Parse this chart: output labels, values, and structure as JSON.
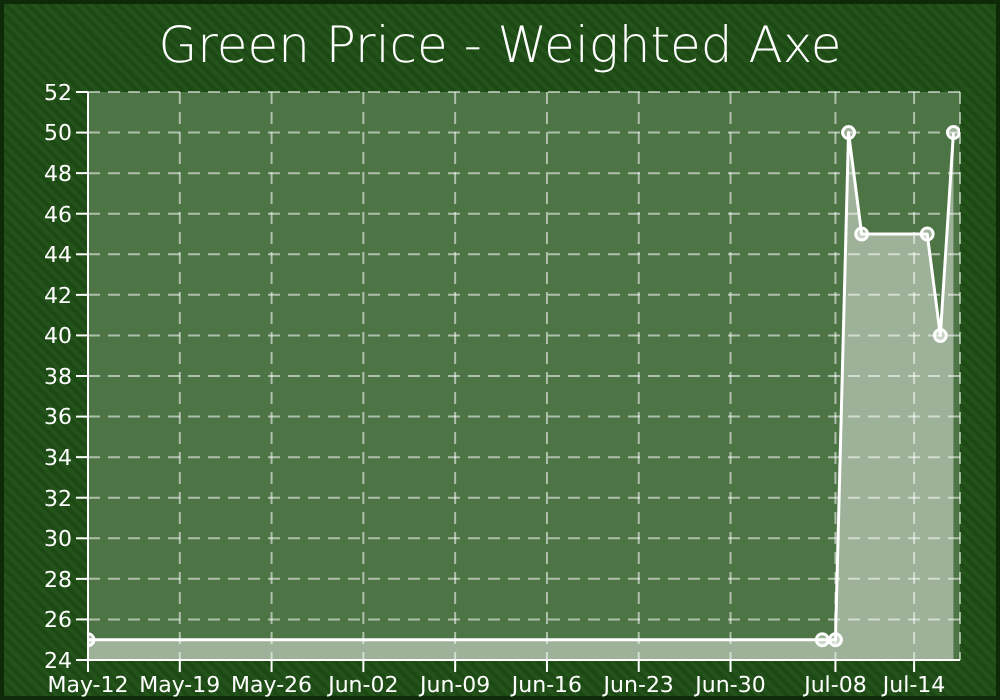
{
  "chart_data": {
    "type": "area",
    "title": "Green Price - Weighted Axe",
    "x": [
      "--05-12",
      "--07-07",
      "--07-08",
      "--07-09",
      "--07-10",
      "--07-15",
      "--07-16",
      "--07-17"
    ],
    "series": [
      {
        "color": "#ffffff",
        "values": [
          25,
          25,
          25,
          50,
          45,
          45,
          40,
          50
        ]
      }
    ],
    "xlim": [
      "--05-12",
      "--07-17T12:00"
    ],
    "xticks": [
      {
        "value": "--05-12",
        "label": "May-12"
      },
      {
        "value": "--05-19",
        "label": "May-19"
      },
      {
        "value": "--05-26",
        "label": "May-26"
      },
      {
        "value": "--06-02",
        "label": "Jun-02"
      },
      {
        "value": "--06-09",
        "label": "Jun-09"
      },
      {
        "value": "--06-16",
        "label": "Jun-16"
      },
      {
        "value": "--06-23",
        "label": "Jun-23"
      },
      {
        "value": "--06-30",
        "label": "Jun-30"
      },
      {
        "value": "--07-08",
        "label": "Jul-08"
      },
      {
        "value": "--07-14",
        "label": "Jul-14"
      }
    ],
    "ylim": [
      24,
      52
    ],
    "yticks": [
      24,
      26,
      28,
      30,
      32,
      34,
      36,
      38,
      40,
      42,
      44,
      46,
      48,
      50,
      52
    ],
    "grid": true,
    "marker": "circle",
    "line_style": "solid"
  }
}
